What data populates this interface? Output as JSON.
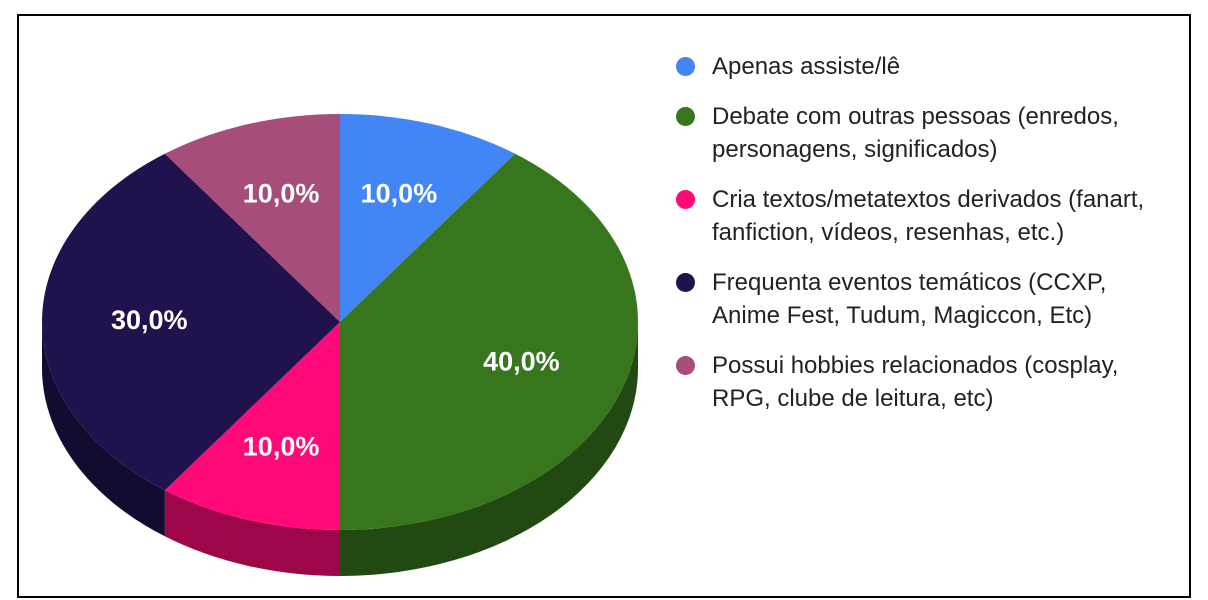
{
  "chart_data": {
    "type": "pie",
    "categories": [
      "Apenas assiste/lê",
      "Debate com outras pessoas (enredos, personagens, significados)",
      "Cria textos/metatextos derivados (fanart, fanfiction, vídeos, resenhas, etc.)",
      "Frequenta eventos temáticos (CCXP, Anime Fest, Tudum, Magiccon, Etc)",
      "Possui hobbies relacionados (cosplay, RPG, clube de leitura, etc)"
    ],
    "values": [
      10,
      40,
      10,
      30,
      10
    ],
    "value_labels": [
      "10,0%",
      "40,0%",
      "10,0%",
      "30,0%",
      "10,0%"
    ],
    "colors": [
      "#4285f4",
      "#38761d",
      "#ff0a78",
      "#20124d",
      "#a64d79"
    ],
    "legend": "right"
  }
}
